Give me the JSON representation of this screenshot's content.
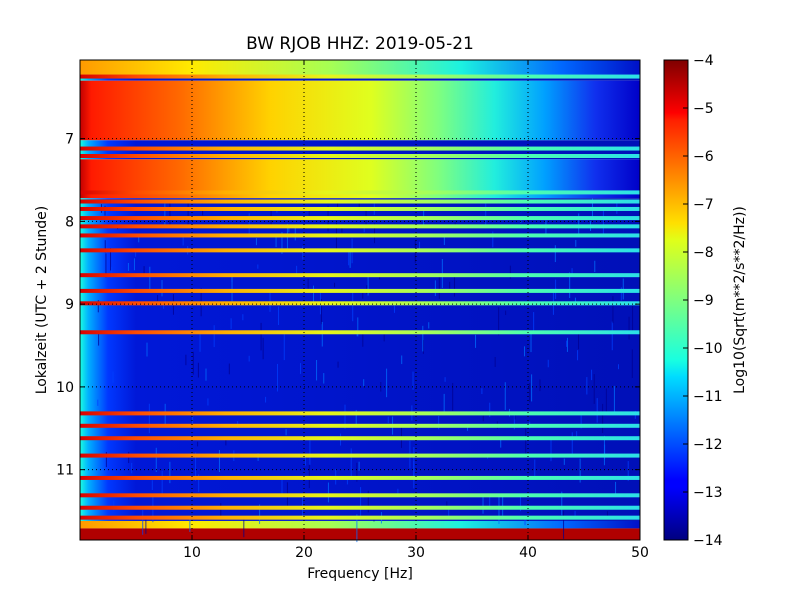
{
  "chart_data": {
    "type": "heatmap",
    "title": "BW RJOB HHZ: 2019-05-21",
    "xlabel": "Frequency [Hz]",
    "ylabel": "Lokalzeit (UTC + 2 Stunde)",
    "xlim": [
      0,
      50
    ],
    "ylim": [
      11.85,
      6.05
    ],
    "x_ticks": [
      10,
      20,
      30,
      40,
      50
    ],
    "y_ticks": [
      7,
      8,
      9,
      10,
      11
    ],
    "grid": true,
    "colorbar": {
      "label": "Log10(Sqrt(m**2/s**2/Hz))",
      "min": -14,
      "max": -4,
      "ticks": [
        -4,
        -5,
        -6,
        -7,
        -8,
        -9,
        -10,
        -11,
        -12,
        -13,
        -14
      ],
      "colormap": "jet"
    },
    "regimes": [
      {
        "from": 6.05,
        "to": 6.23,
        "level": "mid"
      },
      {
        "from": 6.23,
        "to": 6.3,
        "level": "low"
      },
      {
        "from": 6.3,
        "to": 7.02,
        "level": "high"
      },
      {
        "from": 7.02,
        "to": 7.25,
        "level": "low"
      },
      {
        "from": 7.25,
        "to": 7.72,
        "level": "high"
      },
      {
        "from": 7.72,
        "to": 11.62,
        "level": "low"
      },
      {
        "from": 11.62,
        "to": 11.71,
        "level": "mid"
      },
      {
        "from": 11.71,
        "to": 11.85,
        "level": "saturated"
      }
    ],
    "bands": [
      6.25,
      7.12,
      7.21,
      7.65,
      7.76,
      7.85,
      7.96,
      8.06,
      8.17,
      8.35,
      8.65,
      8.84,
      8.99,
      9.34,
      10.32,
      10.47,
      10.62,
      10.83,
      11.1,
      11.31,
      11.46,
      11.58
    ]
  }
}
